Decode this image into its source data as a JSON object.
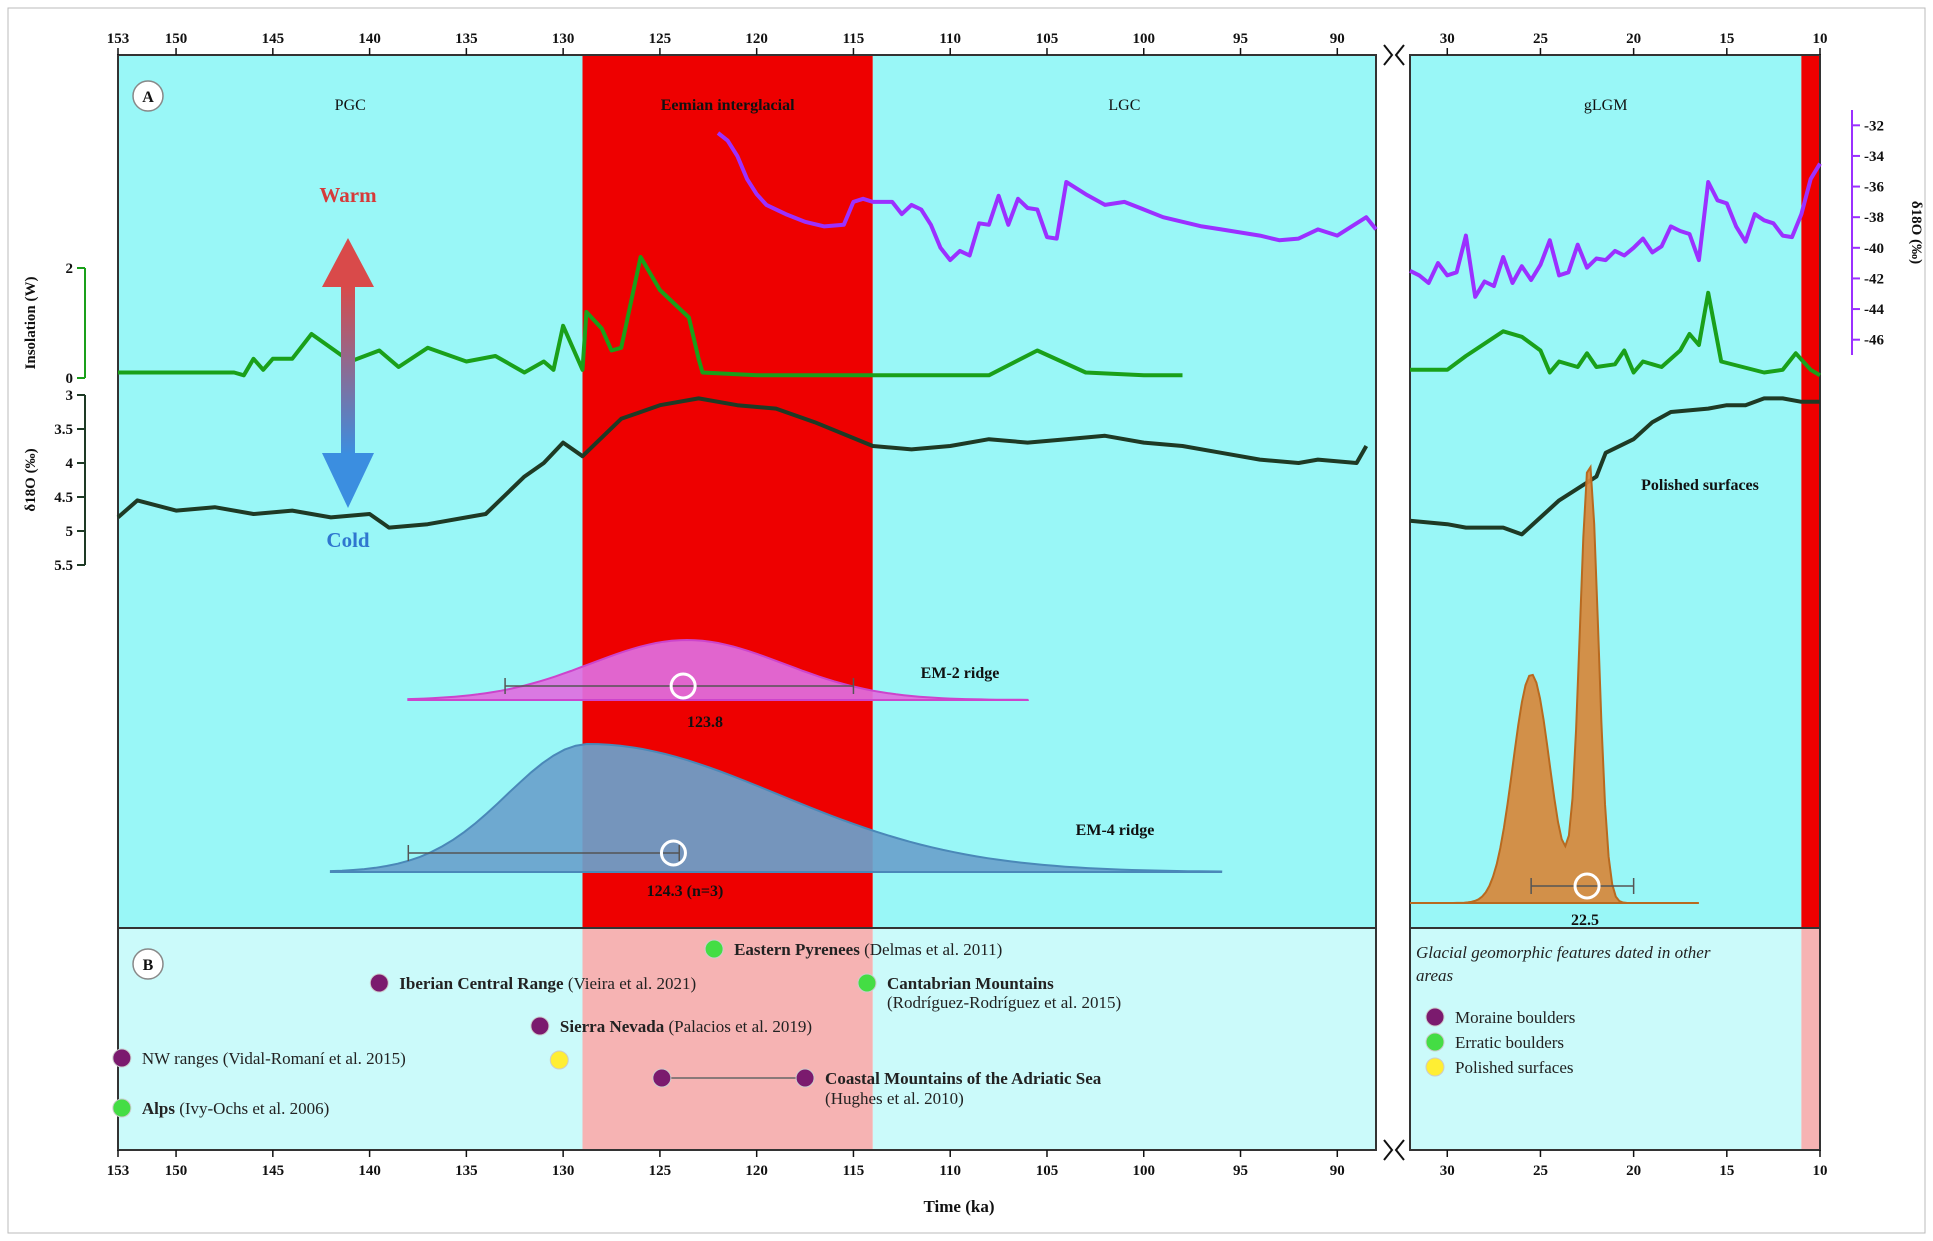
{
  "chart_data": {
    "type": "line",
    "panels": {
      "a": {
        "label": "A"
      },
      "b": {
        "label": "B"
      }
    },
    "x_axis": {
      "label": "Time (ka)",
      "left_segment": {
        "range": [
          153,
          88
        ],
        "ticks": [
          153,
          150,
          145,
          140,
          135,
          130,
          125,
          120,
          115,
          110,
          105,
          100,
          95,
          90
        ]
      },
      "right_segment": {
        "range": [
          32,
          10
        ],
        "ticks": [
          30,
          25,
          20,
          15,
          10
        ]
      }
    },
    "periods": [
      {
        "name": "PGC",
        "start": 153,
        "end": 129,
        "color": "#99f7f7"
      },
      {
        "name": "Eemian interglacial",
        "start": 129,
        "end": 114,
        "color": "#ee0000"
      },
      {
        "name": "LGC",
        "start": 114,
        "end": 88,
        "color": "#99f7f7"
      },
      {
        "name": "gLGM",
        "start": 32,
        "end": 11,
        "color": "#99f7f7"
      },
      {
        "name": "",
        "start": 11,
        "end": 10,
        "color": "#ee0000"
      }
    ],
    "warm_cold_arrow": {
      "warm": "Warm",
      "cold": "Cold"
    },
    "series": [
      {
        "axis_label": "δ18O (‰)",
        "color": "#9b30ff",
        "yticks": [
          -32,
          -34,
          -36,
          -38,
          -40,
          -42,
          -44,
          -46
        ],
        "y_range": [
          -31,
          -47
        ],
        "segments": [
          [
            [
              122,
              -32.5
            ],
            [
              121.5,
              -33
            ],
            [
              121,
              -34
            ],
            [
              120.5,
              -35.5
            ],
            [
              120,
              -36.5
            ],
            [
              119.5,
              -37.2
            ],
            [
              118.5,
              -37.8
            ],
            [
              117.5,
              -38.3
            ],
            [
              116.5,
              -38.6
            ],
            [
              115.5,
              -38.5
            ],
            [
              115,
              -37
            ],
            [
              114.5,
              -36.8
            ],
            [
              114,
              -37
            ],
            [
              113,
              -37
            ],
            [
              112.5,
              -37.8
            ],
            [
              112,
              -37.2
            ],
            [
              111.5,
              -37.5
            ],
            [
              111,
              -38.5
            ],
            [
              110.5,
              -40
            ],
            [
              110,
              -40.8
            ],
            [
              109.5,
              -40.2
            ],
            [
              109,
              -40.5
            ],
            [
              108.5,
              -38.4
            ],
            [
              108,
              -38.5
            ],
            [
              107.5,
              -36.6
            ],
            [
              107,
              -38.5
            ],
            [
              106.5,
              -36.8
            ],
            [
              106,
              -37.4
            ],
            [
              105.5,
              -37.5
            ],
            [
              105,
              -39.3
            ],
            [
              104.5,
              -39.4
            ],
            [
              104,
              -35.7
            ],
            [
              103,
              -36.5
            ],
            [
              102,
              -37.2
            ],
            [
              101,
              -37
            ],
            [
              100,
              -37.5
            ],
            [
              99,
              -38
            ],
            [
              98,
              -38.3
            ],
            [
              97,
              -38.6
            ],
            [
              96,
              -38.8
            ],
            [
              95,
              -39
            ],
            [
              94,
              -39.2
            ],
            [
              93,
              -39.5
            ],
            [
              92,
              -39.4
            ],
            [
              91,
              -38.8
            ],
            [
              90,
              -39.2
            ],
            [
              89,
              -38.4
            ],
            [
              88.5,
              -38
            ],
            [
              88,
              -38.8
            ]
          ],
          [
            [
              32,
              -41.5
            ],
            [
              31.5,
              -41.8
            ],
            [
              31,
              -42.3
            ],
            [
              30.5,
              -41
            ],
            [
              30,
              -41.8
            ],
            [
              29.5,
              -41.6
            ],
            [
              29,
              -39.2
            ],
            [
              28.5,
              -43.2
            ],
            [
              28,
              -42.2
            ],
            [
              27.5,
              -42.5
            ],
            [
              27,
              -40.6
            ],
            [
              26.5,
              -42.3
            ],
            [
              26,
              -41.2
            ],
            [
              25.5,
              -42.1
            ],
            [
              25,
              -41.1
            ],
            [
              24.5,
              -39.5
            ],
            [
              24,
              -41.8
            ],
            [
              23.5,
              -41.6
            ],
            [
              23,
              -39.8
            ],
            [
              22.5,
              -41.3
            ],
            [
              22,
              -40.7
            ],
            [
              21.5,
              -40.8
            ],
            [
              21,
              -40.2
            ],
            [
              20.5,
              -40.5
            ],
            [
              20,
              -40
            ],
            [
              19.5,
              -39.4
            ],
            [
              19,
              -40.3
            ],
            [
              18.5,
              -39.9
            ],
            [
              18,
              -38.6
            ],
            [
              17.5,
              -38.9
            ],
            [
              17,
              -39.1
            ],
            [
              16.5,
              -40.8
            ],
            [
              16,
              -35.7
            ],
            [
              15.5,
              -36.9
            ],
            [
              15,
              -37.1
            ],
            [
              14.5,
              -38.6
            ],
            [
              14,
              -39.6
            ],
            [
              13.5,
              -37.8
            ],
            [
              13,
              -38.2
            ],
            [
              12.5,
              -38.4
            ],
            [
              12,
              -39.2
            ],
            [
              11.5,
              -39.3
            ],
            [
              11,
              -37.8
            ],
            [
              10.5,
              -35.5
            ],
            [
              10,
              -34.5
            ]
          ]
        ]
      },
      {
        "axis_label": "Insolation (W)",
        "color": "#1aa01a",
        "yticks": [
          2,
          0
        ],
        "y_range": [
          0,
          2
        ],
        "segments": [
          [
            [
              153,
              0.1
            ],
            [
              147,
              0.1
            ],
            [
              146.5,
              0.05
            ],
            [
              146,
              0.35
            ],
            [
              145.5,
              0.15
            ],
            [
              145,
              0.35
            ],
            [
              144,
              0.35
            ],
            [
              143,
              0.8
            ],
            [
              141,
              0.3
            ],
            [
              139.5,
              0.5
            ],
            [
              138.5,
              0.2
            ],
            [
              137,
              0.55
            ],
            [
              135,
              0.3
            ],
            [
              133.5,
              0.4
            ],
            [
              132,
              0.1
            ],
            [
              131,
              0.3
            ],
            [
              130.5,
              0.15
            ],
            [
              130,
              0.95
            ],
            [
              129,
              0.15
            ],
            [
              128.8,
              1.2
            ],
            [
              128,
              0.9
            ],
            [
              127.5,
              0.5
            ],
            [
              127,
              0.55
            ],
            [
              126,
              2.2
            ],
            [
              125,
              1.6
            ],
            [
              123.5,
              1.1
            ],
            [
              123,
              0.35
            ],
            [
              122.8,
              0.1
            ],
            [
              120,
              0.05
            ],
            [
              115,
              0.05
            ],
            [
              110,
              0.05
            ],
            [
              108,
              0.05
            ],
            [
              105.5,
              0.5
            ],
            [
              103,
              0.1
            ],
            [
              100,
              0.05
            ],
            [
              98,
              0.05
            ]
          ],
          [
            [
              32,
              0.15
            ],
            [
              30,
              0.15
            ],
            [
              29,
              0.4
            ],
            [
              27,
              0.85
            ],
            [
              26,
              0.75
            ],
            [
              25,
              0.5
            ],
            [
              24.5,
              0.1
            ],
            [
              24,
              0.3
            ],
            [
              23,
              0.2
            ],
            [
              22.5,
              0.45
            ],
            [
              22,
              0.2
            ],
            [
              21,
              0.25
            ],
            [
              20.5,
              0.5
            ],
            [
              20,
              0.1
            ],
            [
              19.5,
              0.3
            ],
            [
              18.5,
              0.2
            ],
            [
              17.5,
              0.5
            ],
            [
              17,
              0.8
            ],
            [
              16.5,
              0.6
            ],
            [
              16,
              1.55
            ],
            [
              15.3,
              0.3
            ],
            [
              13,
              0.1
            ],
            [
              12,
              0.15
            ],
            [
              11.3,
              0.45
            ],
            [
              10.5,
              0.15
            ],
            [
              10,
              0.05
            ]
          ]
        ]
      },
      {
        "axis_label": "δ18O (‰)",
        "color": "#1e3a25",
        "yticks": [
          3,
          3.5,
          4,
          4.5,
          5,
          5.5
        ],
        "y_range": [
          3,
          5.5
        ],
        "segments": [
          [
            [
              153,
              4.8
            ],
            [
              152,
              4.55
            ],
            [
              150,
              4.7
            ],
            [
              148,
              4.65
            ],
            [
              146,
              4.75
            ],
            [
              144,
              4.7
            ],
            [
              142,
              4.8
            ],
            [
              140,
              4.75
            ],
            [
              139,
              4.95
            ],
            [
              137,
              4.9
            ],
            [
              135,
              4.8
            ],
            [
              134,
              4.75
            ],
            [
              132,
              4.2
            ],
            [
              131,
              4
            ],
            [
              130,
              3.7
            ],
            [
              129,
              3.9
            ],
            [
              127,
              3.35
            ],
            [
              125,
              3.15
            ],
            [
              123,
              3.05
            ],
            [
              121,
              3.15
            ],
            [
              119,
              3.2
            ],
            [
              117,
              3.4
            ],
            [
              114,
              3.75
            ],
            [
              112,
              3.8
            ],
            [
              110,
              3.75
            ],
            [
              108,
              3.65
            ],
            [
              106,
              3.7
            ],
            [
              104,
              3.65
            ],
            [
              102,
              3.6
            ],
            [
              100,
              3.7
            ],
            [
              98,
              3.75
            ],
            [
              96,
              3.85
            ],
            [
              94,
              3.95
            ],
            [
              92,
              4
            ],
            [
              91,
              3.95
            ],
            [
              89,
              4
            ],
            [
              88.5,
              3.75
            ]
          ],
          [
            [
              32,
              4.85
            ],
            [
              30,
              4.9
            ],
            [
              29,
              4.95
            ],
            [
              27,
              4.95
            ],
            [
              26,
              5.05
            ],
            [
              25,
              4.8
            ],
            [
              24,
              4.55
            ],
            [
              22,
              4.2
            ],
            [
              21.5,
              3.85
            ],
            [
              20,
              3.65
            ],
            [
              19,
              3.4
            ],
            [
              18,
              3.25
            ],
            [
              16,
              3.2
            ],
            [
              15,
              3.15
            ],
            [
              14,
              3.15
            ],
            [
              13,
              3.05
            ],
            [
              12,
              3.05
            ],
            [
              11,
              3.1
            ],
            [
              10,
              3.1
            ]
          ]
        ]
      }
    ],
    "distributions": [
      {
        "name": "EM-2 ridge",
        "value_label": "123.8",
        "mean": 123.8,
        "error_bar": [
          133,
          115
        ],
        "span": [
          138,
          106
        ]
      },
      {
        "name": "EM-4 ridge",
        "value_label": "124.3 (n=3)",
        "mean": 124.3,
        "error_bar": [
          138,
          124
        ],
        "span": [
          142,
          96
        ]
      },
      {
        "name": "Polished surfaces",
        "value_label": "22.5",
        "mean": 22.5,
        "error_bar": [
          25.5,
          20
        ],
        "span": [
          32,
          16.5
        ]
      }
    ],
    "panel_b": {
      "points": [
        {
          "type": "Erratic boulders",
          "x": [
            122.2
          ],
          "bold": "Eastern Pyrenees",
          "ref": "(Delmas et al. 2011)"
        },
        {
          "type": "Moraine boulders",
          "x": [
            139.5
          ],
          "bold": "Iberian Central Range",
          "ref": "(Vieira et al. 2021)"
        },
        {
          "type": "Erratic boulders",
          "x": [
            114.3
          ],
          "bold": "Cantabrian Mountains",
          "ref": "(Rodríguez-Rodríguez et al. 2015)"
        },
        {
          "type": "Moraine boulders",
          "x": [
            131.2
          ],
          "bold": "Sierra Nevada",
          "ref": "(Palacios et al. 2019)"
        },
        {
          "type": "Moraine boulders",
          "x": [
            152.8
          ],
          "bold": "",
          "ref": "NW ranges (Vidal-Romaní et al. 2015)"
        },
        {
          "type": "Polished surfaces",
          "x": [
            130.2
          ],
          "bold": "",
          "ref": ""
        },
        {
          "type": "Moraine boulders",
          "x": [
            124.9,
            117.5
          ],
          "bold": "Coastal Mountains of the Adriatic Sea",
          "ref": "(Hughes et al. 2010)"
        },
        {
          "type": "Erratic boulders",
          "x": [
            152.8
          ],
          "bold": "Alps",
          "ref": "(Ivy-Ochs et al. 2006)"
        }
      ],
      "legend_title": "Glacial geomorphic features dated in other areas",
      "legend": [
        {
          "label": "Moraine boulders",
          "color": "#7b1a6e"
        },
        {
          "label": "Erratic boulders",
          "color": "#44dd44"
        },
        {
          "label": "Polished surfaces",
          "color": "#ffee33"
        }
      ]
    }
  }
}
